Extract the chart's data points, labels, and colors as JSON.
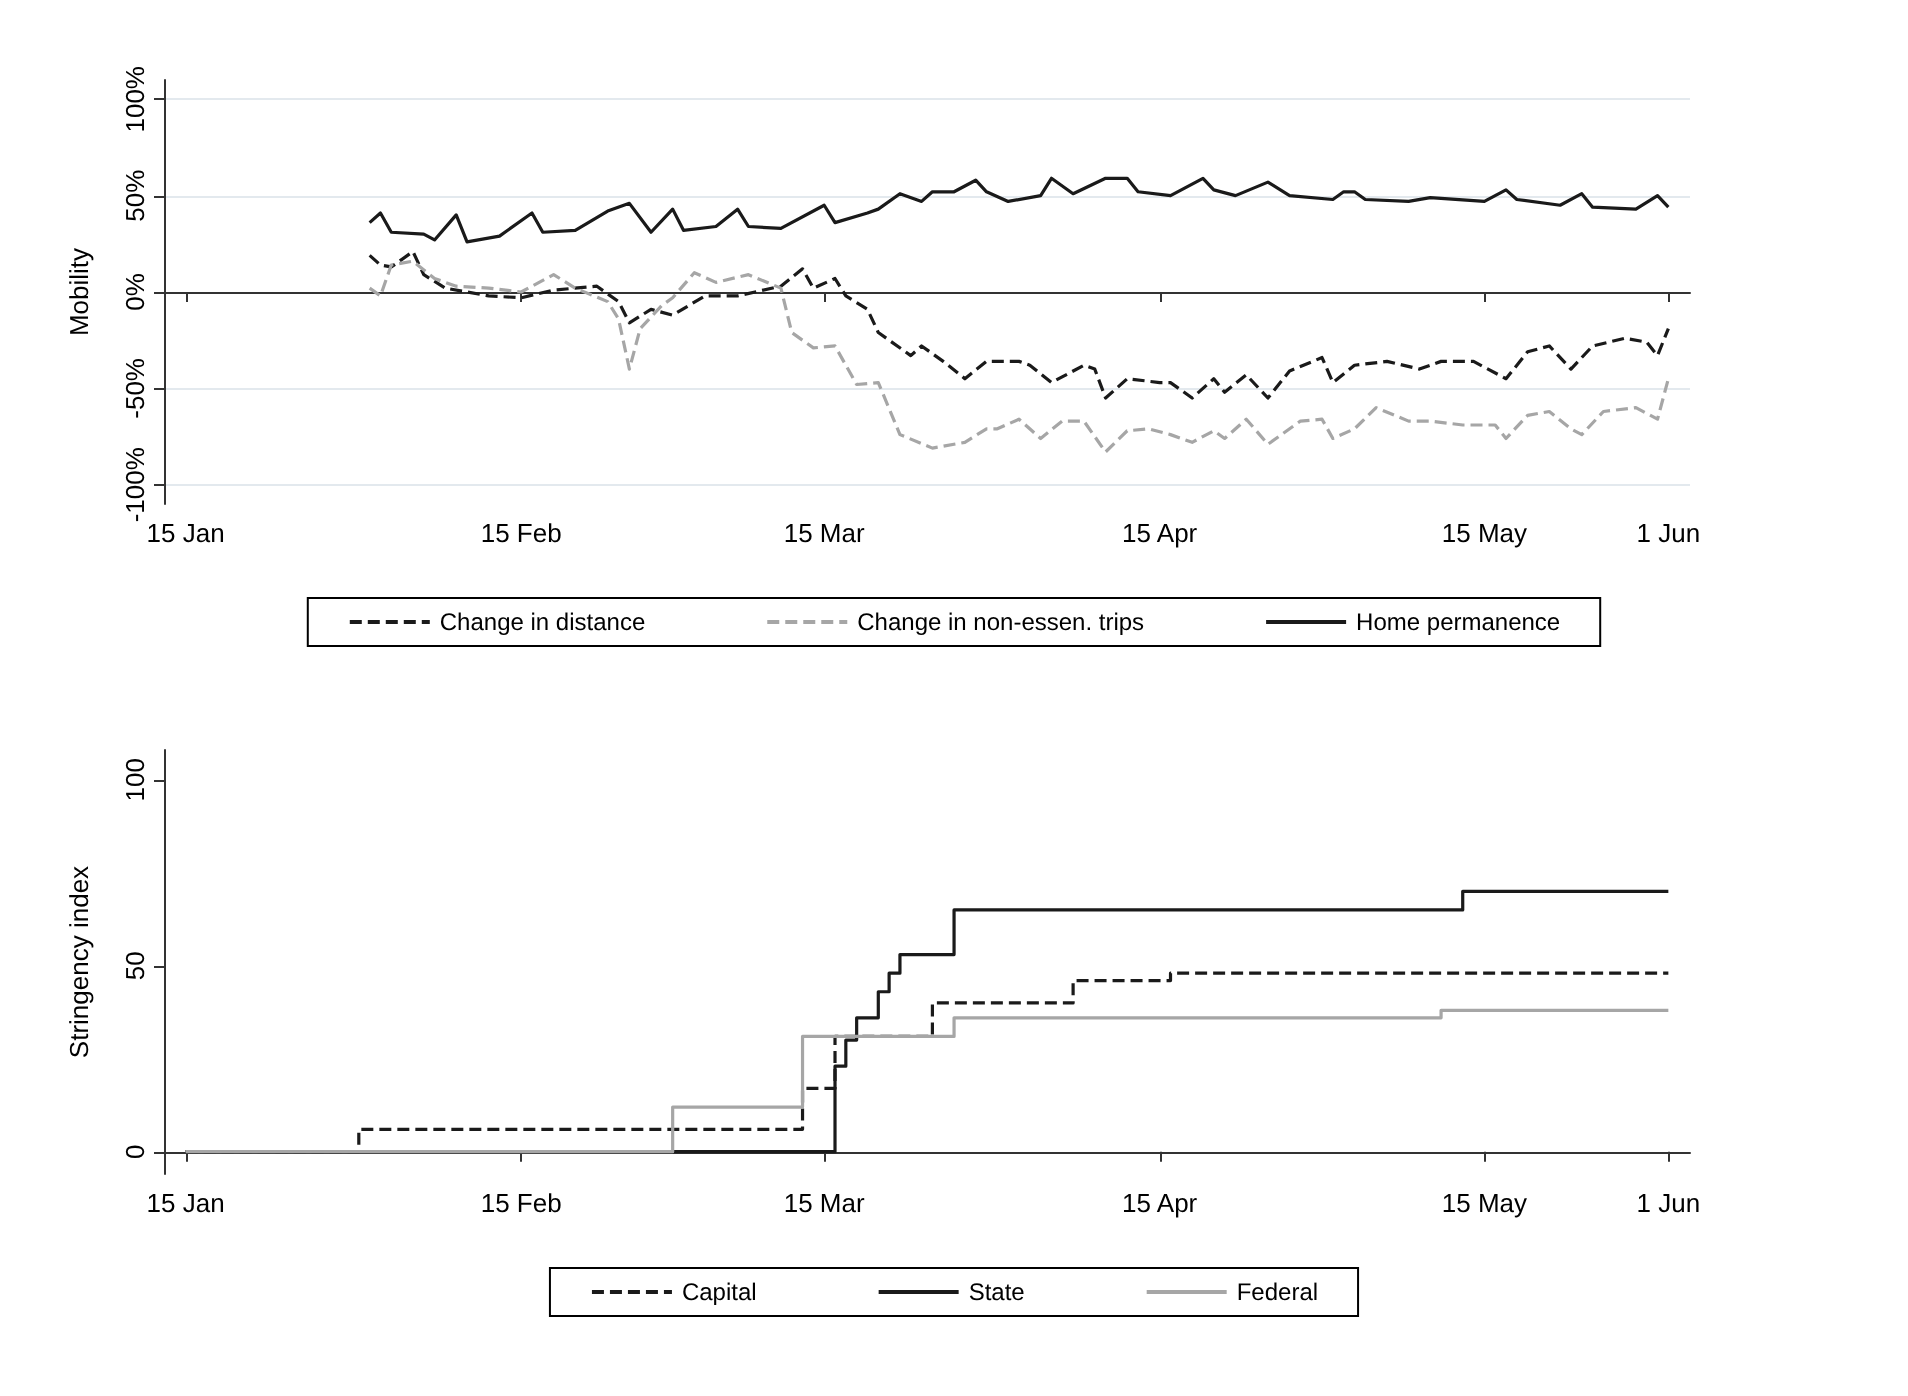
{
  "chart_data": [
    {
      "type": "line",
      "ylabel": "Mobility",
      "xlim": [
        "--01-13",
        "--06-03"
      ],
      "xticks": [
        {
          "value": "--01-15",
          "label": "15 Jan"
        },
        {
          "value": "--02-15",
          "label": "15 Feb"
        },
        {
          "value": "--03-15",
          "label": "15 Mar"
        },
        {
          "value": "--04-15",
          "label": "15 Apr"
        },
        {
          "value": "--05-15",
          "label": "15 May"
        },
        {
          "value": "--06-01",
          "label": "1 Jun"
        }
      ],
      "ylim": [
        -110,
        110
      ],
      "yticks": [
        {
          "value": -100,
          "label": "-100%"
        },
        {
          "value": -50,
          "label": "-50%"
        },
        {
          "value": 0,
          "label": "0%"
        },
        {
          "value": 50,
          "label": "50%"
        },
        {
          "value": 100,
          "label": "100%"
        }
      ],
      "grid": "y",
      "legend": "bottom",
      "marker": "none",
      "series": [
        {
          "name": "Change in distance",
          "color": "#1a1a1a",
          "line_style": "dashed",
          "x": [
            "--02-01",
            "--02-02",
            "--02-03",
            "--02-05",
            "--02-06",
            "--02-08",
            "--02-12",
            "--02-15",
            "--02-18",
            "--02-22",
            "--02-24",
            "--02-25",
            "--02-27",
            "--03-01",
            "--03-04",
            "--03-07",
            "--03-11",
            "--03-13",
            "--03-14",
            "--03-16",
            "--03-17",
            "--03-19",
            "--03-20",
            "--03-23",
            "--03-24",
            "--03-26",
            "--03-28",
            "--03-30",
            "--03-31",
            "--04-02",
            "--04-03",
            "--04-05",
            "--04-08",
            "--04-09",
            "--04-10",
            "--04-12",
            "--04-15",
            "--04-16",
            "--04-18",
            "--04-20",
            "--04-21",
            "--04-23",
            "--04-25",
            "--04-27",
            "--04-30",
            "--05-01",
            "--05-03",
            "--05-06",
            "--05-09",
            "--05-11",
            "--05-14",
            "--05-17",
            "--05-19",
            "--05-21",
            "--05-23",
            "--05-25",
            "--05-28",
            "--05-30",
            "--05-31",
            "--06-01"
          ],
          "values": [
            19,
            14,
            13,
            21,
            9,
            2,
            -2,
            -3,
            1,
            3,
            -5,
            -16,
            -9,
            -12,
            -2,
            -2,
            3,
            12,
            2,
            7,
            -2,
            -9,
            -21,
            -33,
            -28,
            -36,
            -45,
            -36,
            -36,
            -36,
            -38,
            -47,
            -38,
            -40,
            -55,
            -45,
            -47,
            -47,
            -55,
            -45,
            -52,
            -43,
            -55,
            -41,
            -34,
            -47,
            -38,
            -36,
            -40,
            -36,
            -36,
            -45,
            -31,
            -28,
            -40,
            -28,
            -24,
            -26,
            -33,
            -19
          ]
        },
        {
          "name": "Change in non-essen. trips",
          "color": "#a6a6a6",
          "line_style": "dashed",
          "x": [
            "--02-01",
            "--02-02",
            "--02-03",
            "--02-05",
            "--02-07",
            "--02-09",
            "--02-12",
            "--02-15",
            "--02-18",
            "--02-20",
            "--02-23",
            "--02-24",
            "--02-25",
            "--02-26",
            "--02-28",
            "--03-01",
            "--03-03",
            "--03-05",
            "--03-08",
            "--03-11",
            "--03-12",
            "--03-14",
            "--03-16",
            "--03-18",
            "--03-20",
            "--03-22",
            "--03-25",
            "--03-28",
            "--03-30",
            "--03-31",
            "--04-02",
            "--04-04",
            "--04-06",
            "--04-08",
            "--04-10",
            "--04-12",
            "--04-14",
            "--04-16",
            "--04-18",
            "--04-20",
            "--04-21",
            "--04-23",
            "--04-25",
            "--04-28",
            "--04-30",
            "--05-01",
            "--05-03",
            "--05-05",
            "--05-08",
            "--05-10",
            "--05-13",
            "--05-16",
            "--05-17",
            "--05-19",
            "--05-21",
            "--05-23",
            "--05-24",
            "--05-26",
            "--05-29",
            "--05-31",
            "--06-01"
          ],
          "values": [
            2,
            -2,
            14,
            16,
            7,
            3,
            2,
            0,
            9,
            2,
            -5,
            -14,
            -40,
            -19,
            -7,
            -3,
            10,
            5,
            9,
            2,
            -21,
            -29,
            -28,
            -48,
            -47,
            -74,
            -81,
            -78,
            -71,
            -71,
            -66,
            -76,
            -67,
            -67,
            -83,
            -72,
            -71,
            -74,
            -78,
            -72,
            -76,
            -66,
            -79,
            -67,
            -66,
            -76,
            -71,
            -60,
            -67,
            -67,
            -69,
            -69,
            -76,
            -64,
            -62,
            -71,
            -74,
            -62,
            -60,
            -66,
            -45
          ]
        },
        {
          "name": "Home permanence",
          "color": "#1a1a1a",
          "line_style": "solid",
          "x": [
            "--02-01",
            "--02-02",
            "--02-03",
            "--02-06",
            "--02-07",
            "--02-09",
            "--02-10",
            "--02-13",
            "--02-16",
            "--02-17",
            "--02-20",
            "--02-23",
            "--02-25",
            "--02-27",
            "--03-01",
            "--03-02",
            "--03-05",
            "--03-07",
            "--03-08",
            "--03-11",
            "--03-15",
            "--03-16",
            "--03-19",
            "--03-20",
            "--03-22",
            "--03-24",
            "--03-25",
            "--03-27",
            "--03-29",
            "--03-30",
            "--04-01",
            "--04-04",
            "--04-05",
            "--04-07",
            "--04-10",
            "--04-12",
            "--04-13",
            "--04-16",
            "--04-19",
            "--04-20",
            "--04-22",
            "--04-25",
            "--04-27",
            "--05-01",
            "--05-02",
            "--05-03",
            "--05-04",
            "--05-08",
            "--05-10",
            "--05-15",
            "--05-17",
            "--05-18",
            "--05-22",
            "--05-24",
            "--05-25",
            "--05-29",
            "--05-31",
            "--06-01"
          ],
          "values": [
            36,
            41,
            31,
            30,
            27,
            40,
            26,
            29,
            41,
            31,
            32,
            42,
            46,
            31,
            43,
            32,
            34,
            43,
            34,
            33,
            45,
            36,
            41,
            43,
            51,
            47,
            52,
            52,
            58,
            52,
            47,
            50,
            59,
            51,
            59,
            59,
            52,
            50,
            59,
            53,
            50,
            57,
            50,
            48,
            52,
            52,
            48,
            47,
            49,
            47,
            53,
            48,
            45,
            51,
            44,
            43,
            50,
            44
          ]
        }
      ]
    },
    {
      "type": "step",
      "ylabel": "Stringency index",
      "xlim": [
        "--01-13",
        "--06-03"
      ],
      "xticks": [
        {
          "value": "--01-15",
          "label": "15 Jan"
        },
        {
          "value": "--02-15",
          "label": "15 Feb"
        },
        {
          "value": "--03-15",
          "label": "15 Mar"
        },
        {
          "value": "--04-15",
          "label": "15 Apr"
        },
        {
          "value": "--05-15",
          "label": "15 May"
        },
        {
          "value": "--06-01",
          "label": "1 Jun"
        }
      ],
      "ylim": [
        -6,
        108
      ],
      "yticks": [
        0,
        50,
        100
      ],
      "grid": false,
      "legend": "bottom",
      "marker": "none",
      "series": [
        {
          "name": "Capital",
          "color": "#1a1a1a",
          "line_style": "dashed",
          "x": [
            "--01-15",
            "--01-31",
            "--03-13",
            "--03-16",
            "--03-25",
            "--04-07",
            "--04-16",
            "--06-01"
          ],
          "values": [
            0,
            6,
            17,
            31,
            40,
            46,
            48,
            48
          ]
        },
        {
          "name": "State",
          "color": "#1a1a1a",
          "line_style": "solid",
          "x": [
            "--01-15",
            "--03-16",
            "--03-17",
            "--03-18",
            "--03-20",
            "--03-21",
            "--03-22",
            "--03-27",
            "--05-13",
            "--06-01"
          ],
          "values": [
            0,
            23,
            30,
            36,
            43,
            48,
            53,
            65,
            70,
            70
          ]
        },
        {
          "name": "Federal",
          "color": "#a6a6a6",
          "line_style": "solid",
          "x": [
            "--01-15",
            "--03-01",
            "--03-13",
            "--03-27",
            "--05-11",
            "--06-01"
          ],
          "values": [
            0,
            12,
            31,
            36,
            38,
            38
          ]
        }
      ]
    }
  ]
}
